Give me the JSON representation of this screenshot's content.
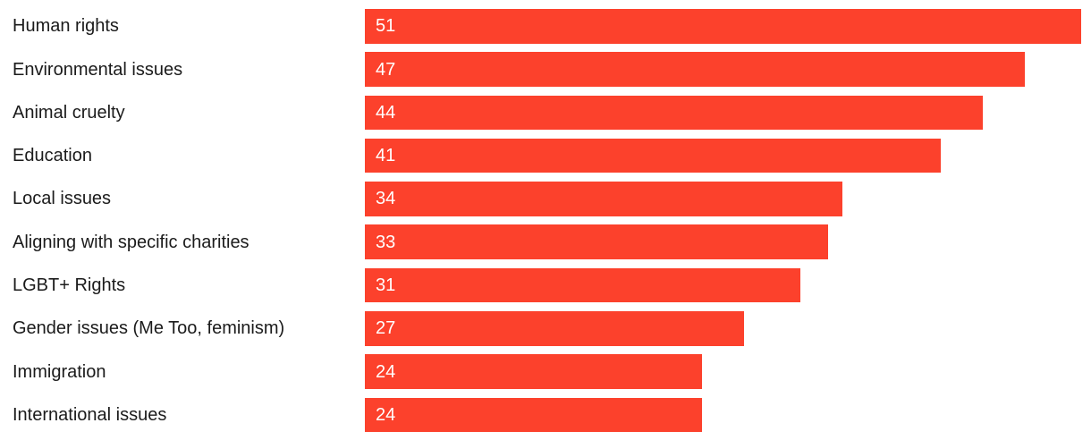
{
  "chart_data": {
    "type": "bar",
    "orientation": "horizontal",
    "title": "",
    "xlabel": "",
    "ylabel": "",
    "categories": [
      "Human rights",
      "Environmental issues",
      "Animal cruelty",
      "Education",
      "Local issues",
      "Aligning with specific charities",
      "LGBT+ Rights",
      "Gender issues (Me Too, feminism)",
      "Immigration",
      "International issues"
    ],
    "values": [
      51,
      47,
      44,
      41,
      34,
      33,
      31,
      27,
      24,
      24
    ],
    "value_labels": [
      "51",
      "47",
      "44",
      "41",
      "34",
      "33",
      "31",
      "27",
      "24",
      "24"
    ],
    "xlim": [
      0,
      52
    ],
    "grid": false,
    "legend_position": "none",
    "axis_ticks_visible": false,
    "bar_color": "#FC412C",
    "value_label_color": "#FFFFFF",
    "category_label_color": "#1B1B1B",
    "background_color": "#FFFFFF"
  }
}
